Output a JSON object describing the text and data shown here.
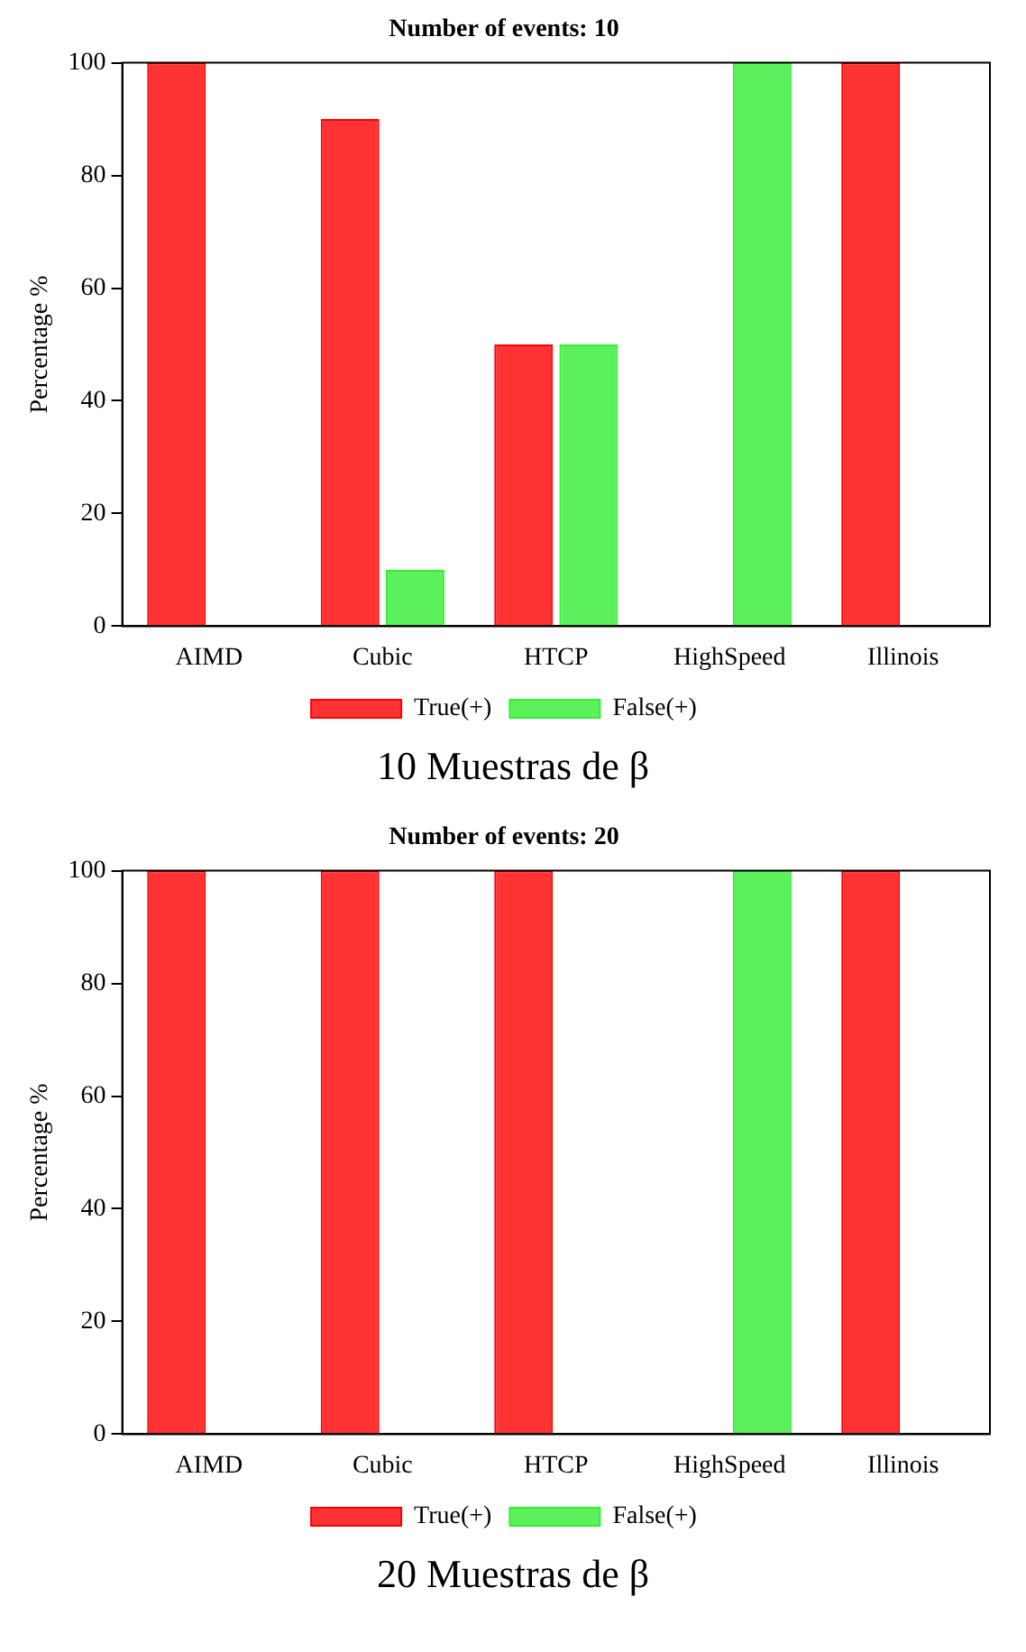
{
  "chart_data": [
    {
      "type": "bar",
      "title": "Number of events: 10",
      "ylabel": "Percentage %",
      "categories": [
        "AIMD",
        "Cubic",
        "HTCP",
        "HighSpeed",
        "Illinois"
      ],
      "series": [
        {
          "name": "True(+)",
          "color": "#ff0000",
          "values": [
            100,
            90,
            50,
            0,
            100
          ]
        },
        {
          "name": "False(+)",
          "color": "#33ee33",
          "values": [
            0,
            10,
            50,
            100,
            0
          ]
        }
      ],
      "ylim": [
        0,
        100
      ],
      "yticks": [
        0,
        20,
        40,
        60,
        80,
        100
      ],
      "grid": false,
      "legend": "bottom",
      "annotations": [
        "10 Muestras de β"
      ]
    },
    {
      "type": "bar",
      "title": "Number of events: 20",
      "ylabel": "Percentage %",
      "categories": [
        "AIMD",
        "Cubic",
        "HTCP",
        "HighSpeed",
        "Illinois"
      ],
      "series": [
        {
          "name": "True(+)",
          "color": "#ff0000",
          "values": [
            100,
            100,
            100,
            0,
            100
          ]
        },
        {
          "name": "False(+)",
          "color": "#33ee33",
          "values": [
            0,
            0,
            0,
            100,
            0
          ]
        }
      ],
      "ylim": [
        0,
        100
      ],
      "yticks": [
        0,
        20,
        40,
        60,
        80,
        100
      ],
      "grid": false,
      "legend": "bottom",
      "annotations": [
        "20 Muestras de β"
      ]
    }
  ]
}
